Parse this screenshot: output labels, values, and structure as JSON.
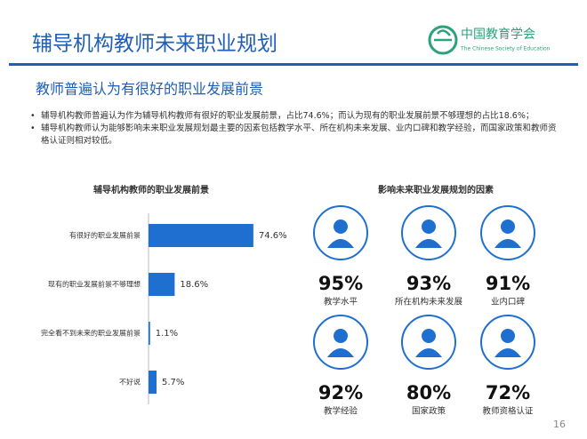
{
  "header": {
    "title": "辅导机构教师未来职业规划",
    "logo_name": "中国教育学会",
    "logo_subtitle": "The Chinese Society of Education"
  },
  "subtitle": "教师普遍认为有很好的职业发展前景",
  "bullets": [
    "辅导机构教师普遍认为作为辅导机构教师有很好的职业发展前景，占比74.6%；而认为现有的职业发展前景不够理想的占比18.6%；",
    "辅导机构教师认为能够影响未来职业发展规划最主要的因素包括教学水平、所在机构未来发展、业内口碑和教学经验，而国家政策和教师资格认证则相对较低。"
  ],
  "chart_data": {
    "type": "hbar",
    "title": "辅导机构教师的职业发展前景",
    "categories": [
      "有很好的职业发展前景",
      "现有的职业发展前景不够理想",
      "完全看不到未来的职业发展前景",
      "不好说"
    ],
    "values": [
      74.6,
      18.6,
      1.1,
      5.7
    ],
    "value_labels": [
      "74.6%",
      "18.6%",
      "1.1%",
      "5.7%"
    ],
    "color": "#1f6fd1",
    "xlim": [
      0,
      100
    ]
  },
  "factors": {
    "title": "影响未来职业发展规划的因素",
    "items": [
      {
        "percent": "95%",
        "label": "教学水平"
      },
      {
        "percent": "93%",
        "label": "所在机构未来发展"
      },
      {
        "percent": "91%",
        "label": "业内口碑"
      },
      {
        "percent": "92%",
        "label": "教学经验"
      },
      {
        "percent": "80%",
        "label": "国家政策"
      },
      {
        "percent": "72%",
        "label": "教师资格认证"
      }
    ]
  },
  "page_number": "16"
}
